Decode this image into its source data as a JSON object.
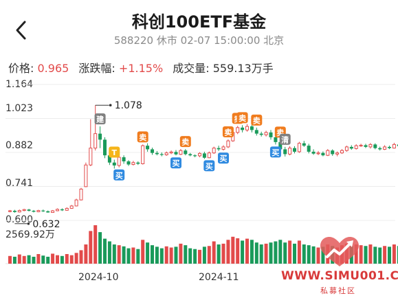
{
  "header": {
    "title": "科创100ETF基金",
    "code": "588220",
    "status": "休市",
    "datetime": "02-07 15:00:00",
    "city": "北京"
  },
  "quote": {
    "price_label": "价格:",
    "price": "0.965",
    "change_label": "涨跌幅:",
    "change": "+1.15%",
    "volume_label": "成交量:",
    "volume": "559.13万手"
  },
  "chart_data": {
    "type": "candlestick",
    "y_ticks": [
      "1.164",
      "1.023",
      "0.882",
      "0.741",
      "0.600"
    ],
    "ylim": [
      0.6,
      1.164
    ],
    "x_ticks": [
      "2024-10",
      "2024-11"
    ],
    "max_annotation": "1.078",
    "min_annotation": "0.632",
    "volume_max_label": "2569.92万",
    "candles": [
      [
        0.637,
        0.64,
        0.643,
        0.634
      ],
      [
        0.64,
        0.635,
        0.644,
        0.632
      ],
      [
        0.635,
        0.641,
        0.645,
        0.633
      ],
      [
        0.641,
        0.645,
        0.648,
        0.638
      ],
      [
        0.645,
        0.64,
        0.648,
        0.637
      ],
      [
        0.64,
        0.636,
        0.643,
        0.633
      ],
      [
        0.636,
        0.641,
        0.644,
        0.634
      ],
      [
        0.641,
        0.638,
        0.645,
        0.635
      ],
      [
        0.638,
        0.633,
        0.641,
        0.632
      ],
      [
        0.633,
        0.64,
        0.643,
        0.632
      ],
      [
        0.64,
        0.646,
        0.65,
        0.638
      ],
      [
        0.646,
        0.642,
        0.65,
        0.639
      ],
      [
        0.642,
        0.65,
        0.654,
        0.64
      ],
      [
        0.65,
        0.66,
        0.664,
        0.648
      ],
      [
        0.66,
        0.685,
        0.69,
        0.658
      ],
      [
        0.685,
        0.73,
        0.735,
        0.683
      ],
      [
        0.74,
        0.83,
        0.84,
        0.738
      ],
      [
        0.83,
        0.9,
        1.02,
        0.825
      ],
      [
        0.9,
        0.96,
        1.078,
        0.89
      ],
      [
        0.96,
        0.935,
        0.99,
        0.9
      ],
      [
        0.935,
        0.87,
        0.945,
        0.858
      ],
      [
        0.87,
        0.84,
        0.885,
        0.83
      ],
      [
        0.84,
        0.828,
        0.852,
        0.815
      ],
      [
        0.828,
        0.862,
        0.868,
        0.82
      ],
      [
        0.862,
        0.845,
        0.87,
        0.835
      ],
      [
        0.845,
        0.832,
        0.85,
        0.826
      ],
      [
        0.832,
        0.84,
        0.847,
        0.828
      ],
      [
        0.84,
        0.835,
        0.845,
        0.83
      ],
      [
        0.835,
        0.91,
        0.915,
        0.832
      ],
      [
        0.91,
        0.895,
        0.92,
        0.885
      ],
      [
        0.895,
        0.88,
        0.902,
        0.872
      ],
      [
        0.88,
        0.875,
        0.888,
        0.87
      ],
      [
        0.875,
        0.872,
        0.882,
        0.866
      ],
      [
        0.872,
        0.88,
        0.886,
        0.868
      ],
      [
        0.88,
        0.884,
        0.89,
        0.875
      ],
      [
        0.884,
        0.874,
        0.892,
        0.87
      ],
      [
        0.874,
        0.89,
        0.896,
        0.871
      ],
      [
        0.89,
        0.875,
        0.896,
        0.87
      ],
      [
        0.875,
        0.87,
        0.88,
        0.866
      ],
      [
        0.87,
        0.868,
        0.874,
        0.862
      ],
      [
        0.868,
        0.878,
        0.883,
        0.862
      ],
      [
        0.878,
        0.86,
        0.885,
        0.855
      ],
      [
        0.86,
        0.88,
        0.886,
        0.858
      ],
      [
        0.88,
        0.9,
        0.906,
        0.876
      ],
      [
        0.9,
        0.895,
        0.91,
        0.888
      ],
      [
        0.895,
        0.905,
        0.912,
        0.89
      ],
      [
        0.905,
        0.93,
        0.936,
        0.9
      ],
      [
        0.93,
        0.965,
        0.972,
        0.926
      ],
      [
        0.965,
        0.985,
        0.992,
        0.958
      ],
      [
        0.985,
        0.975,
        0.995,
        0.965
      ],
      [
        0.975,
        0.99,
        1.0,
        0.968
      ],
      [
        0.99,
        0.975,
        1.002,
        0.965
      ],
      [
        0.975,
        0.96,
        0.985,
        0.952
      ],
      [
        0.96,
        0.955,
        0.968,
        0.948
      ],
      [
        0.955,
        0.965,
        0.972,
        0.948
      ],
      [
        0.965,
        0.945,
        0.975,
        0.935
      ],
      [
        0.945,
        0.925,
        0.952,
        0.915
      ],
      [
        0.925,
        0.895,
        0.935,
        0.885
      ],
      [
        0.895,
        0.875,
        0.905,
        0.865
      ],
      [
        0.875,
        0.9,
        0.908,
        0.87
      ],
      [
        0.9,
        0.885,
        0.908,
        0.878
      ],
      [
        0.885,
        0.92,
        0.926,
        0.88
      ],
      [
        0.92,
        0.91,
        0.93,
        0.905
      ],
      [
        0.91,
        0.885,
        0.918,
        0.878
      ],
      [
        0.885,
        0.877,
        0.895,
        0.872
      ],
      [
        0.877,
        0.88,
        0.888,
        0.871
      ],
      [
        0.88,
        0.87,
        0.886,
        0.866
      ],
      [
        0.87,
        0.89,
        0.896,
        0.867
      ],
      [
        0.89,
        0.875,
        0.895,
        0.868
      ],
      [
        0.875,
        0.88,
        0.886,
        0.866
      ],
      [
        0.88,
        0.89,
        0.896,
        0.876
      ],
      [
        0.89,
        0.905,
        0.91,
        0.885
      ],
      [
        0.905,
        0.898,
        0.912,
        0.893
      ],
      [
        0.898,
        0.91,
        0.916,
        0.894
      ],
      [
        0.91,
        0.912,
        0.918,
        0.905
      ],
      [
        0.912,
        0.905,
        0.918,
        0.9
      ],
      [
        0.905,
        0.915,
        0.921,
        0.898
      ],
      [
        0.915,
        0.9,
        0.92,
        0.895
      ],
      [
        0.9,
        0.895,
        0.906,
        0.89
      ],
      [
        0.895,
        0.905,
        0.912,
        0.892
      ],
      [
        0.905,
        0.9,
        0.91,
        0.896
      ],
      [
        0.9,
        0.915,
        0.922,
        0.898
      ],
      [
        0.915,
        0.908,
        0.921,
        0.902
      ]
    ],
    "volumes": [
      0.2,
      0.18,
      0.24,
      0.2,
      0.22,
      0.18,
      0.25,
      0.21,
      0.18,
      0.26,
      0.22,
      0.2,
      0.25,
      0.22,
      0.28,
      0.35,
      0.5,
      0.85,
      1.0,
      0.82,
      0.65,
      0.58,
      0.5,
      0.48,
      0.45,
      0.4,
      0.42,
      0.38,
      0.62,
      0.55,
      0.48,
      0.44,
      0.4,
      0.45,
      0.42,
      0.44,
      0.52,
      0.48,
      0.4,
      0.38,
      0.36,
      0.44,
      0.46,
      0.58,
      0.5,
      0.52,
      0.62,
      0.7,
      0.66,
      0.6,
      0.65,
      0.62,
      0.55,
      0.5,
      0.52,
      0.55,
      0.58,
      0.62,
      0.55,
      0.6,
      0.52,
      0.6,
      0.5,
      0.48,
      0.45,
      0.42,
      0.44,
      0.5,
      0.46,
      0.42,
      0.48,
      0.52,
      0.46,
      0.5,
      0.48,
      0.46,
      0.5,
      0.44,
      0.42,
      0.46,
      0.44,
      0.5,
      0.46
    ],
    "trade_markers": [
      {
        "label": "建",
        "type": "build",
        "index": 19
      },
      {
        "label": "T",
        "type": "t",
        "index": 22
      },
      {
        "label": "买",
        "type": "buy",
        "index": 23
      },
      {
        "label": "卖",
        "type": "sell",
        "index": 28
      },
      {
        "label": "买",
        "type": "buy",
        "index": 35
      },
      {
        "label": "卖",
        "type": "sell",
        "index": 37
      },
      {
        "label": "买",
        "type": "buy",
        "index": 42
      },
      {
        "label": "买",
        "type": "buy",
        "index": 45
      },
      {
        "label": "卖",
        "type": "sell",
        "index": 46
      },
      {
        "label": "卖",
        "type": "sell",
        "index": 48
      },
      {
        "label": "卖",
        "type": "sell",
        "index": 49
      },
      {
        "label": "卖",
        "type": "sell",
        "index": 52
      },
      {
        "label": "买",
        "type": "buy",
        "index": 56
      },
      {
        "label": "卖",
        "type": "sell",
        "index": 57
      },
      {
        "label": "清",
        "type": "clear",
        "index": 58
      }
    ],
    "colors": {
      "up": "#e24a4a",
      "down": "#1a9a5a",
      "sell": "#f07c1e",
      "buy": "#2f8ae0",
      "build": "#808080",
      "t": "#f5b51b",
      "clear": "#808080"
    }
  },
  "watermark": {
    "text": "WWW.SIMU001.CN",
    "sub": "私募社区"
  }
}
